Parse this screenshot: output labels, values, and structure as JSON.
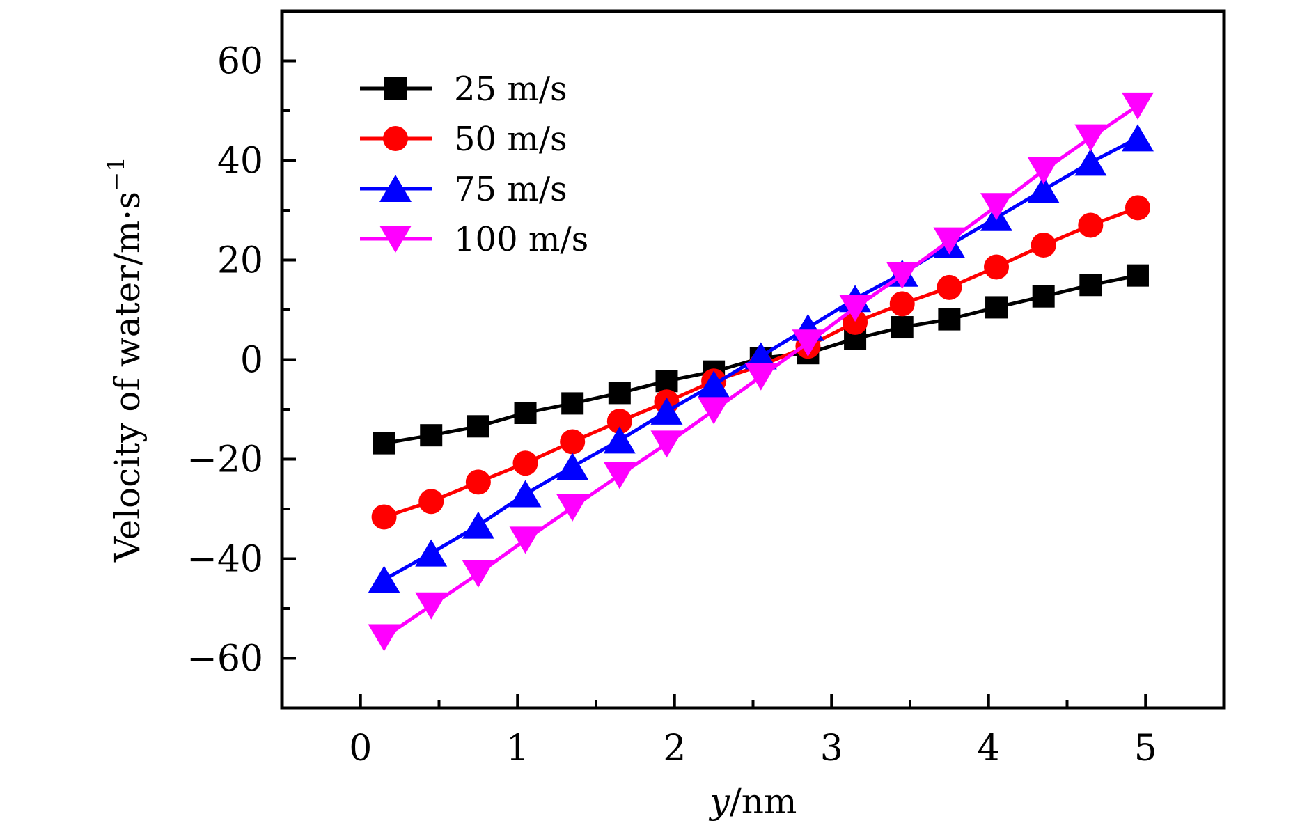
{
  "chart_data": {
    "type": "line",
    "title": "",
    "xlabel_italic": "y",
    "xlabel_rest": "/nm",
    "ylabel_main": "Velocity of water/m·s",
    "ylabel_sup": "−1",
    "xlim": [
      -0.5,
      5.5
    ],
    "ylim": [
      -70,
      70
    ],
    "xticks": [
      0,
      1,
      2,
      3,
      4,
      5
    ],
    "xtick_labels": [
      "0",
      "1",
      "2",
      "3",
      "4",
      "5"
    ],
    "xminor": [
      0.5,
      1.5,
      2.5,
      3.5,
      4.5
    ],
    "yticks": [
      60,
      40,
      20,
      0,
      -20,
      -40,
      -60
    ],
    "ytick_labels": [
      "60",
      "40",
      "20",
      "0",
      "−20",
      "−40",
      "−60"
    ],
    "yminor": [
      50,
      30,
      10,
      -10,
      -30,
      -50
    ],
    "grid": false,
    "legend_position": "top-left",
    "x": [
      0.15,
      0.45,
      0.75,
      1.05,
      1.35,
      1.65,
      1.95,
      2.25,
      2.55,
      2.85,
      3.15,
      3.45,
      3.75,
      4.05,
      4.35,
      4.65,
      4.95
    ],
    "series": [
      {
        "name": "25 m/s",
        "color": "#000000",
        "marker": "square",
        "values": [
          -16.8,
          -15.2,
          -13.4,
          -10.7,
          -8.8,
          -6.7,
          -4.3,
          -2.4,
          0.3,
          1.3,
          4.2,
          6.5,
          8.1,
          10.5,
          12.7,
          15.0,
          16.9
        ]
      },
      {
        "name": "50 m/s",
        "color": "#ff0000",
        "marker": "circle",
        "values": [
          -31.6,
          -28.5,
          -24.6,
          -20.8,
          -16.5,
          -12.4,
          -8.5,
          -4.3,
          -1.2,
          2.7,
          7.5,
          11.2,
          14.5,
          18.6,
          23.0,
          27.0,
          30.5
        ]
      },
      {
        "name": "75 m/s",
        "color": "#0000ff",
        "marker": "triangle-up",
        "values": [
          -44.2,
          -38.9,
          -33.3,
          -27.0,
          -21.5,
          -16.2,
          -10.4,
          -5.0,
          0.7,
          6.4,
          12.2,
          17.3,
          23.0,
          28.5,
          34.1,
          39.6,
          44.5
        ]
      },
      {
        "name": "100 m/s",
        "color": "#ff00ff",
        "marker": "triangle-down",
        "values": [
          -55.8,
          -49.4,
          -43.0,
          -36.2,
          -29.7,
          -23.2,
          -16.9,
          -10.2,
          -3.4,
          3.4,
          10.4,
          17.0,
          23.9,
          30.8,
          38.0,
          44.6,
          51.0
        ]
      }
    ]
  }
}
